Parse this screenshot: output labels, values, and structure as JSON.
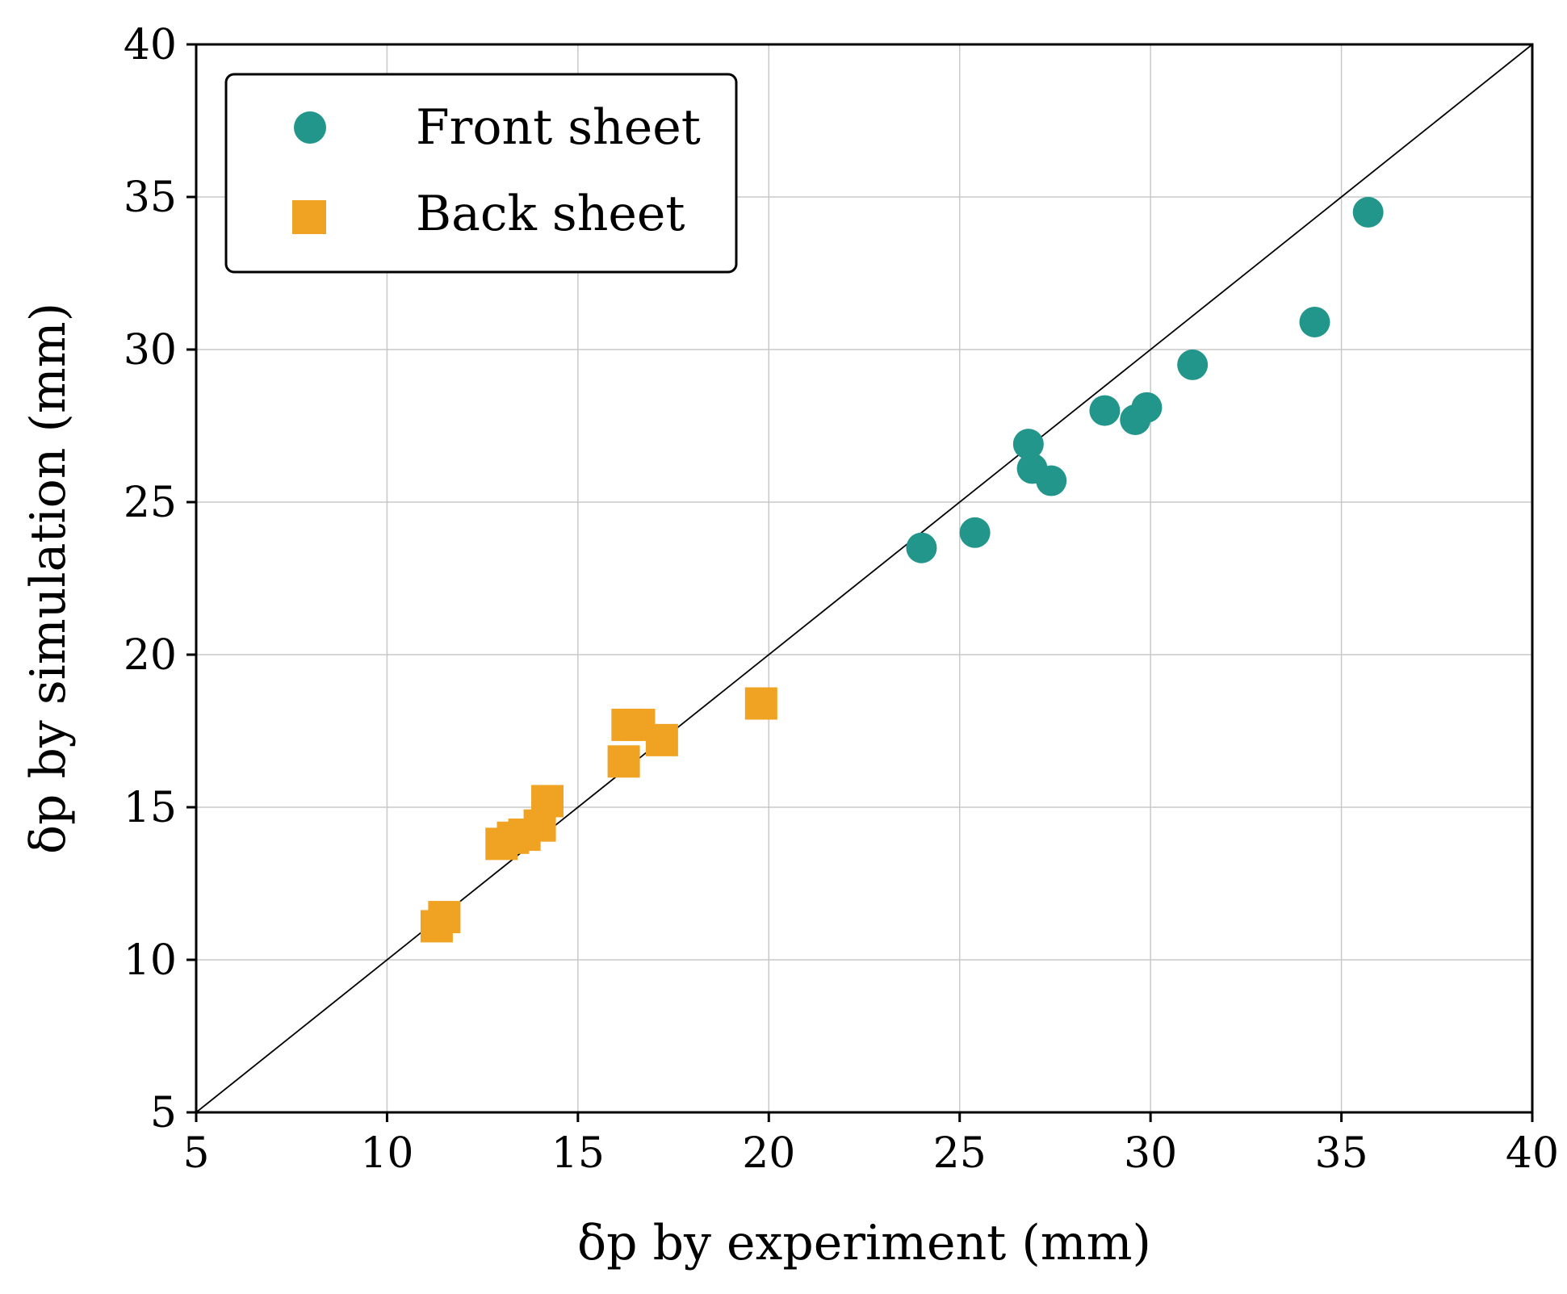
{
  "chart_data": {
    "type": "scatter",
    "title": "",
    "xlabel": "δp by experiment (mm)",
    "ylabel": "δp by simulation (mm)",
    "xlim": [
      5,
      40
    ],
    "ylim": [
      5,
      40
    ],
    "xticks": [
      5,
      10,
      15,
      20,
      25,
      30,
      35,
      40
    ],
    "yticks": [
      5,
      10,
      15,
      20,
      25,
      30,
      35,
      40
    ],
    "grid": true,
    "legend_position": "top-left",
    "reference_line": {
      "style": "y = x",
      "color": "#000000"
    },
    "series": [
      {
        "name": "Front sheet",
        "marker": "circle",
        "color": "#23968b",
        "points": [
          [
            24.0,
            23.5
          ],
          [
            25.4,
            24.0
          ],
          [
            26.8,
            26.9
          ],
          [
            26.9,
            26.1
          ],
          [
            27.4,
            25.7
          ],
          [
            28.8,
            28.0
          ],
          [
            29.6,
            27.7
          ],
          [
            29.9,
            28.1
          ],
          [
            31.1,
            29.5
          ],
          [
            34.3,
            30.9
          ],
          [
            35.7,
            34.5
          ]
        ]
      },
      {
        "name": "Back sheet",
        "marker": "square",
        "color": "#f0a223",
        "points": [
          [
            11.3,
            11.1
          ],
          [
            11.5,
            11.4
          ],
          [
            13.0,
            13.8
          ],
          [
            13.3,
            14.0
          ],
          [
            13.6,
            14.1
          ],
          [
            14.0,
            14.4
          ],
          [
            14.2,
            15.2
          ],
          [
            16.2,
            16.5
          ],
          [
            16.3,
            17.7
          ],
          [
            16.6,
            17.7
          ],
          [
            17.2,
            17.2
          ],
          [
            19.8,
            18.4
          ]
        ]
      }
    ]
  }
}
